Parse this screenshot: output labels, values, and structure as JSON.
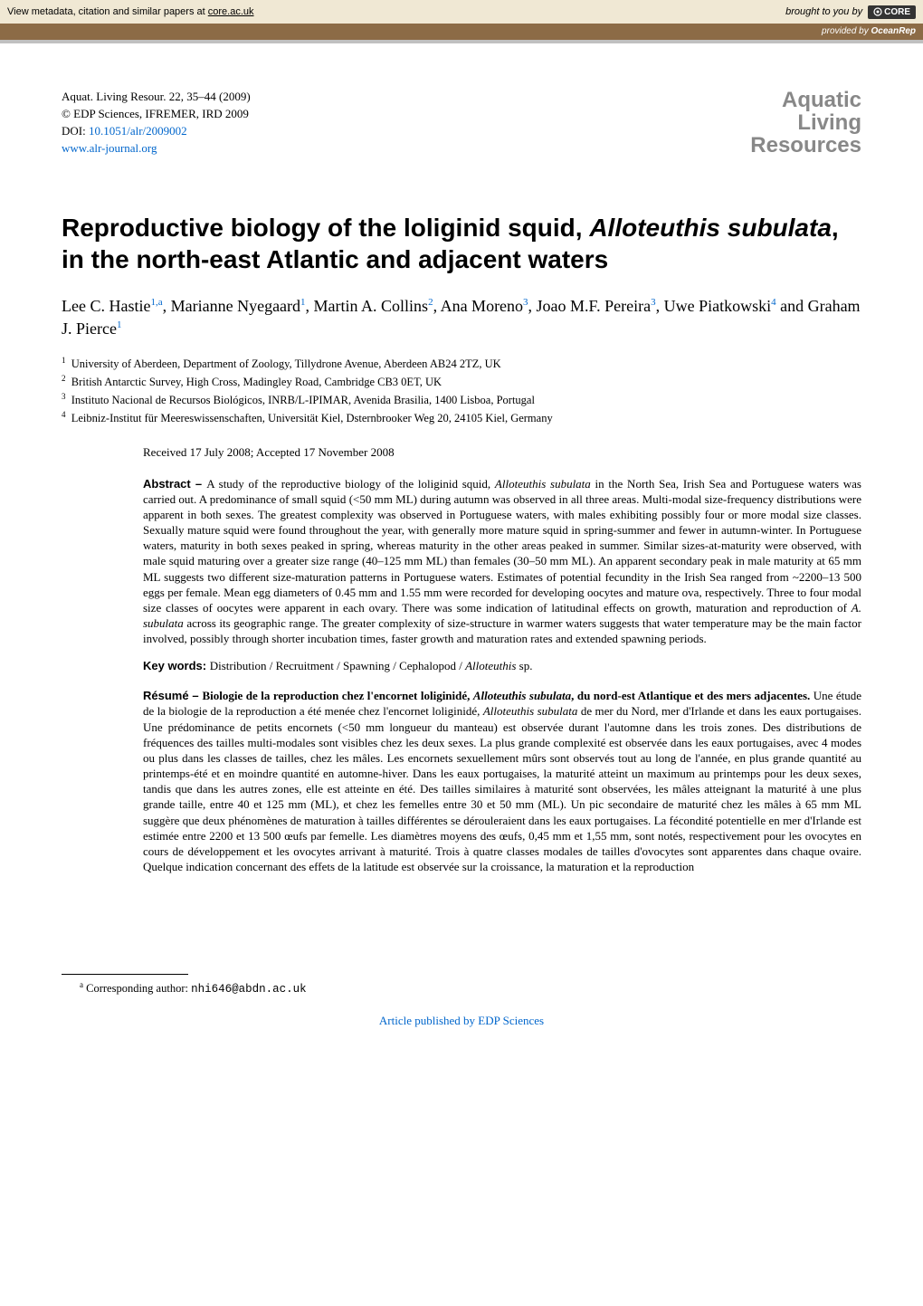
{
  "banner": {
    "left_prefix": "View metadata, citation and similar papers at ",
    "left_link": "core.ac.uk",
    "right_text": "brought to you by",
    "core_label": "CORE"
  },
  "ocean": {
    "prefix": "provided by ",
    "source": "OceanRep"
  },
  "meta": {
    "line1": "Aquat. Living Resour. 22, 35–44 (2009)",
    "line2": "© EDP Sciences, IFREMER, IRD 2009",
    "doi_label": "DOI: ",
    "doi": "10.1051/alr/2009002",
    "url": "www.alr-journal.org"
  },
  "journal_logo": {
    "l1": "Aquatic",
    "l2": "Living",
    "l3": "Resources"
  },
  "title": {
    "pre": "Reproductive biology of the loliginid squid, ",
    "species": "Alloteuthis subulata",
    "post": ", in the north-east Atlantic and adjacent waters"
  },
  "authors_html": "Lee C. Hastie<sup class=\"aff\">1,a</sup>, Marianne Nyegaard<sup class=\"aff\">1</sup>, Martin A. Collins<sup class=\"aff\">2</sup>, Ana Moreno<sup class=\"aff\">3</sup>, Joao M.F. Pereira<sup class=\"aff\">3</sup>, Uwe Piatkowski<sup class=\"aff\">4</sup> and Graham J. Pierce<sup class=\"aff\">1</sup>",
  "affiliations": [
    "University of Aberdeen, Department of Zoology, Tillydrone Avenue, Aberdeen AB24 2TZ, UK",
    "British Antarctic Survey, High Cross, Madingley Road, Cambridge CB3 0ET, UK",
    "Instituto Nacional de Recursos Biológicos, INRB/L-IPIMAR, Avenida Brasilia, 1400 Lisboa, Portugal",
    "Leibniz-Institut für Meereswissenschaften, Universität Kiel, Dsternbrooker Weg 20, 24105 Kiel, Germany"
  ],
  "dates": "Received 17 July 2008; Accepted 17 November 2008",
  "abstract": {
    "label": "Abstract – ",
    "text": "A study of the reproductive biology of the loliginid squid, <em>Alloteuthis subulata</em> in the North Sea, Irish Sea and Portuguese waters was carried out. A predominance of small squid (<50 mm ML) during autumn was observed in all three areas. Multi-modal size-frequency distributions were apparent in both sexes. The greatest complexity was observed in Portuguese waters, with males exhibiting possibly four or more modal size classes. Sexually mature squid were found throughout the year, with generally more mature squid in spring-summer and fewer in autumn-winter. In Portuguese waters, maturity in both sexes peaked in spring, whereas maturity in the other areas peaked in summer. Similar sizes-at-maturity were observed, with male squid maturing over a greater size range (40–125 mm ML) than females (30–50 mm ML). An apparent secondary peak in male maturity at 65 mm ML suggests two different size-maturation patterns in Portuguese waters. Estimates of potential fecundity in the Irish Sea ranged from ~2200–13 500 eggs per female. Mean egg diameters of 0.45 mm and 1.55 mm were recorded for developing oocytes and mature ova, respectively. Three to four modal size classes of oocytes were apparent in each ovary. There was some indication of latitudinal effects on growth, maturation and reproduction of <em>A. subulata</em> across its geographic range. The greater complexity of size-structure in warmer waters suggests that water temperature may be the main factor involved, possibly through shorter incubation times, faster growth and maturation rates and extended spawning periods."
  },
  "keywords": {
    "label": "Key words: ",
    "text": "Distribution / Recruitment / Spawning / Cephalopod / <em>Alloteuthis</em> sp."
  },
  "resume": {
    "label": "Résumé – ",
    "title": "Biologie de la reproduction chez l'encornet loliginidé, <em>Alloteuthis subulata</em>, du nord-est Atlantique et des mers adjacentes. ",
    "text": "Une étude de la biologie de la reproduction a été menée chez l'encornet loliginidé, <em>Alloteuthis subulata</em> de mer du Nord, mer d'Irlande et dans les eaux portugaises. Une prédominance de petits encornets (<50 mm longueur du manteau) est observée durant l'automne dans les trois zones. Des distributions de fréquences des tailles multi-modales sont visibles chez les deux sexes. La plus grande complexité est observée dans les eaux portugaises, avec 4 modes ou plus dans les classes de tailles, chez les mâles. Les encornets sexuellement mûrs sont observés tout au long de l'année, en plus grande quantité au printemps-été et en moindre quantité en automne-hiver. Dans les eaux portugaises, la maturité atteint un maximum au printemps pour les deux sexes, tandis que dans les autres zones, elle est atteinte en été. Des tailles similaires à maturité sont observées, les mâles atteignant la maturité à une plus grande taille, entre 40 et 125 mm (ML), et chez les femelles entre 30 et 50 mm (ML). Un pic secondaire de maturité chez les mâles à 65 mm ML suggère que deux phénomènes de maturation à tailles différentes se dérouleraient dans les eaux portugaises. La fécondité potentielle en mer d'Irlande est estimée entre 2200 et 13 500 œufs par femelle. Les diamètres moyens des œufs, 0,45 mm et 1,55 mm, sont notés, respectivement pour les ovocytes en cours de développement et les ovocytes arrivant à maturité. Trois à quatre classes modales de tailles d'ovocytes sont apparentes dans chaque ovaire. Quelque indication concernant des effets de la latitude est observée sur la croissance, la maturation et la reproduction"
  },
  "corresponding": {
    "label": "Corresponding author: ",
    "email": "nhi646@abdn.ac.uk"
  },
  "pub_link": "Article published by EDP Sciences"
}
